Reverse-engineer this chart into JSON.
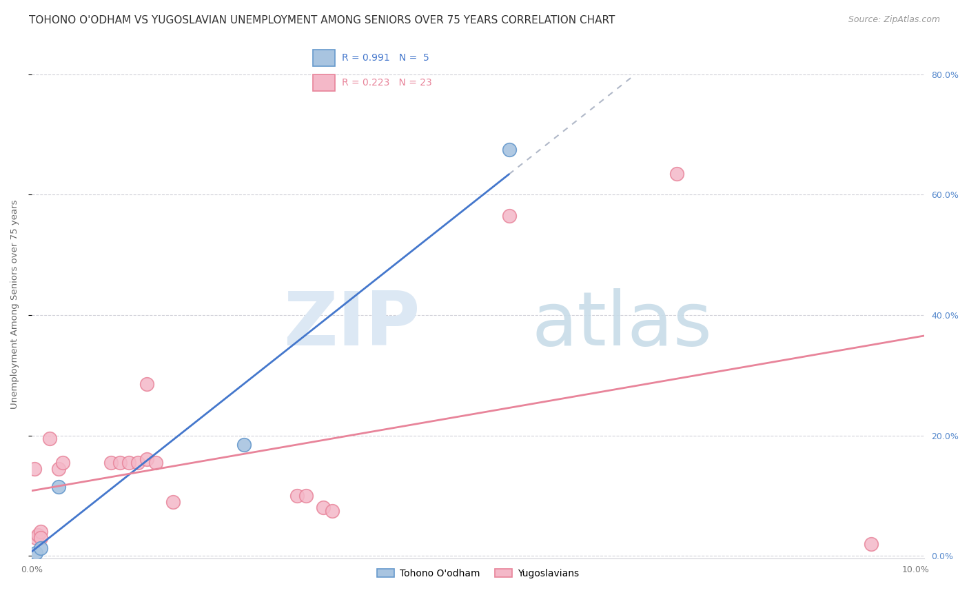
{
  "title": "TOHONO O'ODHAM VS YUGOSLAVIAN UNEMPLOYMENT AMONG SENIORS OVER 75 YEARS CORRELATION CHART",
  "source": "Source: ZipAtlas.com",
  "ylabel": "Unemployment Among Seniors over 75 years",
  "xlim": [
    0.0,
    0.101
  ],
  "ylim": [
    -0.005,
    0.84
  ],
  "y_ticks": [
    0.0,
    0.2,
    0.4,
    0.6,
    0.8
  ],
  "x_ticks": [
    0.0,
    0.02,
    0.04,
    0.06,
    0.08,
    0.1
  ],
  "x_tick_labels": [
    "0.0%",
    "",
    "",
    "",
    "",
    "10.0%"
  ],
  "y_tick_labels_right": [
    "0.0%",
    "20.0%",
    "40.0%",
    "60.0%",
    "80.0%"
  ],
  "tohono_points": [
    [
      0.0005,
      0.005
    ],
    [
      0.001,
      0.013
    ],
    [
      0.003,
      0.115
    ],
    [
      0.024,
      0.185
    ],
    [
      0.054,
      0.675
    ]
  ],
  "yugoslavian_points": [
    [
      0.0003,
      0.145
    ],
    [
      0.0005,
      0.03
    ],
    [
      0.0007,
      0.035
    ],
    [
      0.001,
      0.04
    ],
    [
      0.001,
      0.03
    ],
    [
      0.002,
      0.195
    ],
    [
      0.003,
      0.145
    ],
    [
      0.0035,
      0.155
    ],
    [
      0.009,
      0.155
    ],
    [
      0.01,
      0.155
    ],
    [
      0.011,
      0.155
    ],
    [
      0.012,
      0.155
    ],
    [
      0.013,
      0.16
    ],
    [
      0.013,
      0.285
    ],
    [
      0.014,
      0.155
    ],
    [
      0.016,
      0.09
    ],
    [
      0.03,
      0.1
    ],
    [
      0.031,
      0.1
    ],
    [
      0.033,
      0.08
    ],
    [
      0.034,
      0.075
    ],
    [
      0.054,
      0.565
    ],
    [
      0.073,
      0.635
    ],
    [
      0.095,
      0.02
    ]
  ],
  "tohono_color": "#a8c4e0",
  "tohono_edge_color": "#6699cc",
  "yugoslavian_color": "#f4b8c8",
  "yugoslavian_edge_color": "#e8849a",
  "tohono_line_color": "#4477cc",
  "yugoslavian_line_color": "#e8849a",
  "dash_color": "#b0b8c8",
  "background_color": "#ffffff",
  "grid_color": "#d0d0d8",
  "watermark_zip_color": "#dce8f4",
  "watermark_atlas_color": "#c8dce8",
  "tohono_R": 0.991,
  "tohono_N": 5,
  "yugoslavian_R": 0.223,
  "yugoslavian_N": 23,
  "legend_label_tohono": "Tohono O'odham",
  "legend_label_yugoslavian": "Yugoslavians",
  "title_fontsize": 11,
  "source_fontsize": 9,
  "ylabel_fontsize": 9.5,
  "tick_fontsize": 9,
  "legend_fontsize": 10,
  "right_tick_color": "#5588cc"
}
